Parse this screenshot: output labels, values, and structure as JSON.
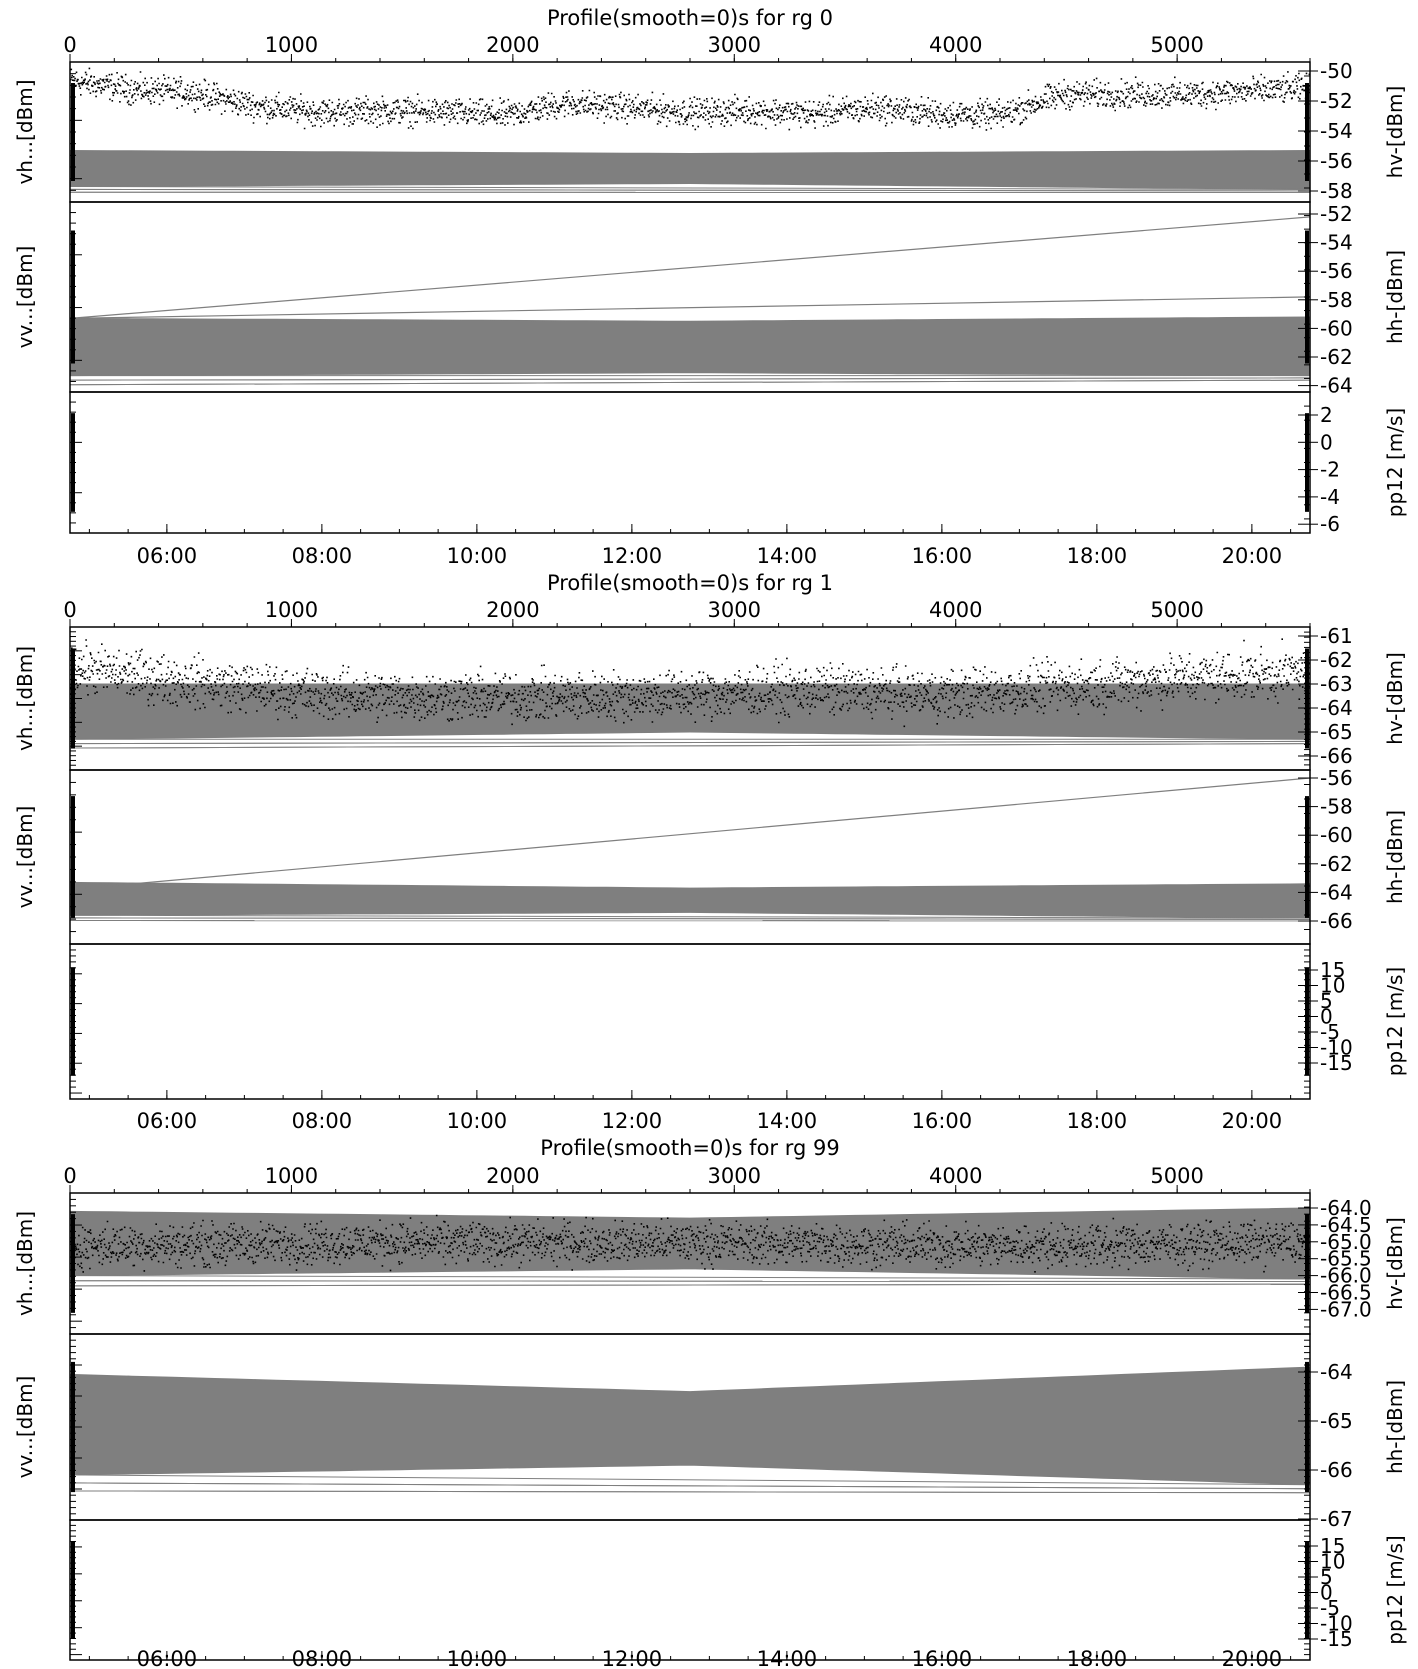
{
  "chart_data": [
    {
      "type": "scatter",
      "title": "Profile(smooth=0)s for rg 0",
      "top_axis_ticks": [
        "0",
        "1000",
        "2000",
        "3000",
        "4000",
        "5000"
      ],
      "bottom_axis_ticks": [
        "06:00",
        "08:00",
        "10:00",
        "12:00",
        "14:00",
        "16:00",
        "18:00",
        "20:00"
      ],
      "panels": [
        {
          "left_label": "vh...[dBm]",
          "right_label": "hv-[dBm]",
          "yticks": [
            "-50",
            "-52",
            "-54",
            "-56",
            "-58"
          ],
          "series": [
            {
              "kind": "points",
              "color": "#000000",
              "values": [
                -50.6,
                -51.2,
                -51.4,
                -52.3,
                -52.7,
                -52.6,
                -52.7,
                -52.9,
                -52.1,
                -52.4,
                -52.7,
                -52.6,
                -52.8,
                -52.4,
                -52.8,
                -52.9,
                -51.5,
                -51.5,
                -51.5,
                -51.3,
                -51.1
              ]
            },
            {
              "kind": "band",
              "color": "#7f7f7f",
              "upper": [
                -55.3,
                -55.5,
                -55.3
              ],
              "lower": [
                -57.7,
                -57.5,
                -57.9
              ]
            }
          ]
        },
        {
          "left_label": "vv...[dBm]",
          "right_label": "hh-[dBm]",
          "yticks": [
            "-52",
            "-54",
            "-56",
            "-58",
            "-60",
            "-62",
            "-64"
          ],
          "series": [
            {
              "kind": "band",
              "color": "#7f7f7f",
              "upper": [
                -59.3,
                -59.5,
                -59.2
              ],
              "lower": [
                -63.3,
                -63.1,
                -63.3
              ]
            },
            {
              "kind": "line",
              "color": "#7f7f7f",
              "values": [
                -59.3,
                -52.2
              ]
            },
            {
              "kind": "line",
              "color": "#7f7f7f",
              "values": [
                -59.3,
                -57.8
              ]
            }
          ]
        },
        {
          "left_label": "",
          "right_label": "pp12 [m/s]",
          "yticks": [
            "2",
            "0",
            "-2",
            "-4",
            "-6"
          ],
          "series": []
        }
      ]
    },
    {
      "type": "scatter",
      "title": "Profile(smooth=0)s for rg 1",
      "top_axis_ticks": [
        "0",
        "1000",
        "2000",
        "3000",
        "4000",
        "5000"
      ],
      "bottom_axis_ticks": [
        "06:00",
        "08:00",
        "10:00",
        "12:00",
        "14:00",
        "16:00",
        "18:00",
        "20:00"
      ],
      "panels": [
        {
          "left_label": "vh...[dBm]",
          "right_label": "hv-[dBm]",
          "yticks": [
            "-61",
            "-62",
            "-63",
            "-64",
            "-65",
            "-66"
          ],
          "series": [
            {
              "kind": "band",
              "color": "#7f7f7f",
              "upper": [
                -63.0,
                -63.0,
                -63.0
              ],
              "lower": [
                -65.3,
                -65.0,
                -65.3
              ]
            },
            {
              "kind": "points",
              "color": "#000000",
              "values": [
                -62.3,
                -62.9,
                -63.4,
                -63.5,
                -63.5,
                -63.4,
                -63.2,
                -63.4,
                -63.1,
                -62.7,
                -62.5
              ]
            }
          ]
        },
        {
          "left_label": "vv...[dBm]",
          "right_label": "hh-[dBm]",
          "yticks": [
            "-56",
            "-58",
            "-60",
            "-62",
            "-64",
            "-66"
          ],
          "series": [
            {
              "kind": "band",
              "color": "#7f7f7f",
              "upper": [
                -63.3,
                -63.7,
                -63.4
              ],
              "lower": [
                -65.6,
                -65.4,
                -65.8
              ]
            },
            {
              "kind": "line",
              "color": "#7f7f7f",
              "values": [
                -63.8,
                -56.0
              ]
            }
          ]
        },
        {
          "left_label": "",
          "right_label": "pp12 [m/s]",
          "yticks": [
            "15",
            "10",
            "5",
            "0",
            "-5",
            "-10",
            "-15"
          ],
          "series": []
        }
      ]
    },
    {
      "type": "scatter",
      "title": "Profile(smooth=0)s for rg 99",
      "top_axis_ticks": [
        "0",
        "1000",
        "2000",
        "3000",
        "4000",
        "5000"
      ],
      "bottom_axis_ticks": [
        "06:00",
        "08:00",
        "10:00",
        "12:00",
        "14:00",
        "16:00",
        "18:00",
        "20:00"
      ],
      "panels": [
        {
          "left_label": "vh...[dBm]",
          "right_label": "hv-[dBm]",
          "yticks": [
            "-64.0",
            "-64.5",
            "-65.0",
            "-65.5",
            "-66.0",
            "-66.5",
            "-67.0"
          ],
          "series": [
            {
              "kind": "band",
              "color": "#7f7f7f",
              "upper": [
                -64.1,
                -64.3,
                -64.0
              ],
              "lower": [
                -66.0,
                -65.8,
                -66.1
              ]
            },
            {
              "kind": "points",
              "color": "#000000",
              "values": [
                -65.1,
                -65.0,
                -65.0,
                -65.1,
                -65.0
              ]
            }
          ]
        },
        {
          "left_label": "vv...[dBm]",
          "right_label": "hh-[dBm]",
          "yticks": [
            "-64",
            "-65",
            "-66",
            "-67"
          ],
          "series": [
            {
              "kind": "band",
              "color": "#7f7f7f",
              "upper": [
                -64.05,
                -64.4,
                -63.9
              ],
              "lower": [
                -66.1,
                -65.9,
                -66.3
              ]
            }
          ]
        },
        {
          "left_label": "",
          "right_label": "pp12 [m/s]",
          "yticks": [
            "15",
            "10",
            "5",
            "0",
            "-5",
            "-10",
            "-15"
          ],
          "series": []
        }
      ]
    }
  ]
}
